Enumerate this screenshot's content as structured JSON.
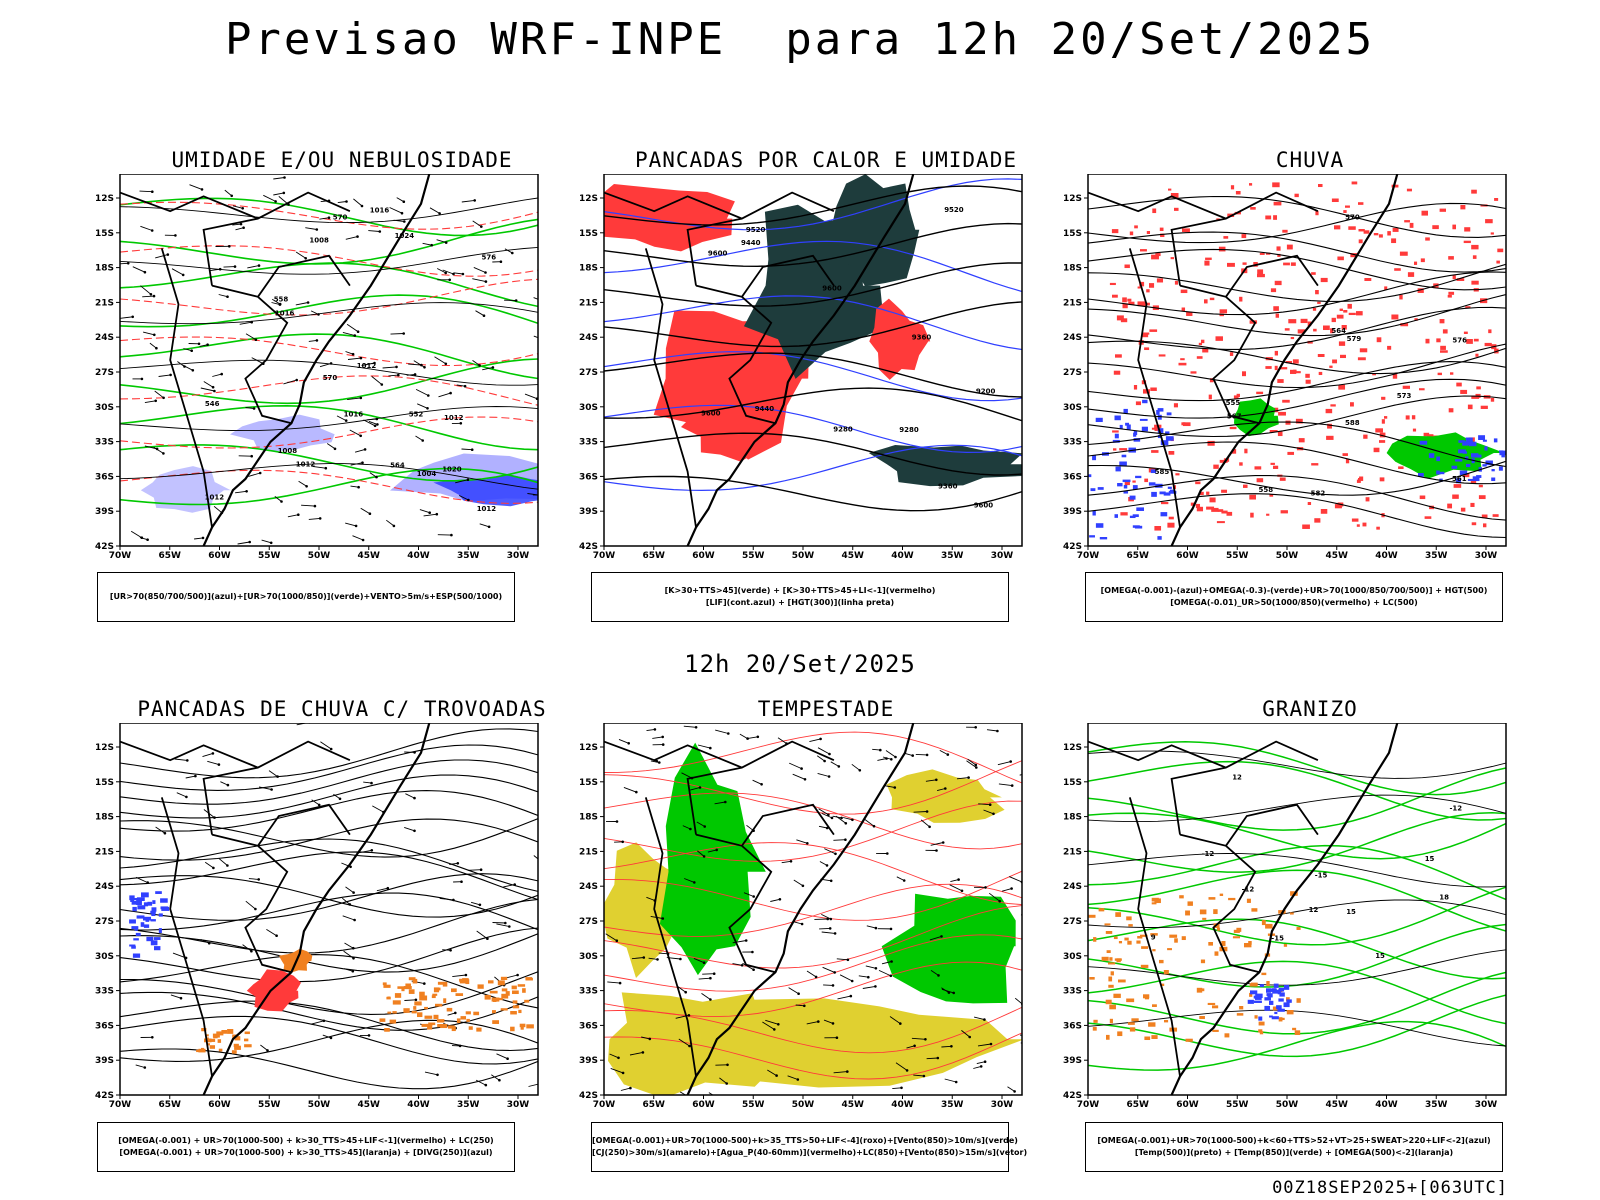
{
  "title": "Previsao WRF-INPE  para 12h 20/Set/2025",
  "subtitle": "12h 20/Set/2025",
  "footer": "00Z18SEP2025+[063UTC]",
  "axis": {
    "lat_ticks": [
      "12S",
      "15S",
      "18S",
      "21S",
      "24S",
      "27S",
      "30S",
      "33S",
      "36S",
      "39S",
      "42S"
    ],
    "lon_ticks": [
      "70W",
      "65W",
      "60W",
      "55W",
      "50W",
      "45W",
      "40W",
      "35W",
      "30W"
    ]
  },
  "colors": {
    "blue": "#3040ff",
    "lavender": "#a8a8ff",
    "green": "#00c800",
    "red": "#ff3a3a",
    "dark_teal": "#1e3c3c",
    "yellow": "#e0d030",
    "orange": "#f08020"
  },
  "panels": [
    {
      "id": "umidade",
      "title": "UMIDADE E/OU NEBULOSIDADE",
      "legend": [
        "[UR>70(850/700/500)](azul)+[UR>70(1000/850)](verde)+VENTO>5m/s+ESP(500/1000)"
      ],
      "contour_labels": [
        "1012",
        "1012",
        "1012",
        "1016",
        "1008",
        "1016",
        "1020",
        "1024",
        "1004",
        "1008",
        "1012",
        "1016",
        "1012",
        "570",
        "564",
        "558",
        "552",
        "546",
        "570",
        "576"
      ]
    },
    {
      "id": "pancadas-calor",
      "title": "PANCADAS POR CALOR E UMIDADE",
      "legend": [
        "[K>30+TTS>45](verde) + [K>30+TTS>45+LI<-1](vermelho)",
        "[LIF](cont.azul) + [HGT(300)](linha preta)"
      ],
      "contour_labels": [
        "9600",
        "9600",
        "9600",
        "9520",
        "9440",
        "9360",
        "9280",
        "9520",
        "9440",
        "9360",
        "9280",
        "9200",
        "9600"
      ]
    },
    {
      "id": "chuva",
      "title": "CHUVA",
      "legend": [
        "[OMEGA(-0.001)-(azul)+OMEGA(-0.3)-(verde)+UR>70(1000/850/700/500)] + HGT(500)",
        "[OMEGA(-0.01)_UR>50(1000/850)(vermelho) + LC(500)"
      ],
      "contour_labels": [
        "588",
        "585",
        "582",
        "579",
        "576",
        "573",
        "570",
        "567",
        "564",
        "561",
        "558",
        "555"
      ]
    },
    {
      "id": "pancadas-trovoadas",
      "title": "PANCADAS DE CHUVA C/ TROVOADAS",
      "legend": [
        "[OMEGA(-0.001) + UR>70(1000-500) + k>30_TTS>45+LIF<-1](vermelho) + LC(250)",
        "[OMEGA(-0.001) + UR>70(1000-500) + k>30_TTS>45](laranja) + [DIVG(250)](azul)"
      ],
      "contour_labels": []
    },
    {
      "id": "tempestade",
      "title": "TEMPESTADE",
      "legend": [
        "[OMEGA(-0.001)+UR>70(1000-500)+k>35_TTS>50+LIF<-4](roxo)+[Vento(850)>10m/s](verde)",
        "[CJ(250)>30m/s](amarelo)+[Agua_P(40-60mm)](vermelho)+LC(850)+[Vento(850)>15m/s](vetor)"
      ],
      "contour_labels": []
    },
    {
      "id": "granizo",
      "title": "GRANIZO",
      "legend": [
        "[OMEGA(-0.001)+UR>70(1000-500)+k<60+TTS>52+VT>25+SWEAT>220+LIF<-2](azul)",
        "[Temp(500)](preto) + [Temp(850)](verde) + [OMEGA(500)<-2](laranja)"
      ],
      "contour_labels": [
        "-12",
        "-12",
        "-15",
        "-12",
        "-15",
        "15",
        "18",
        "15",
        "12",
        "9",
        "12",
        "15"
      ]
    }
  ]
}
